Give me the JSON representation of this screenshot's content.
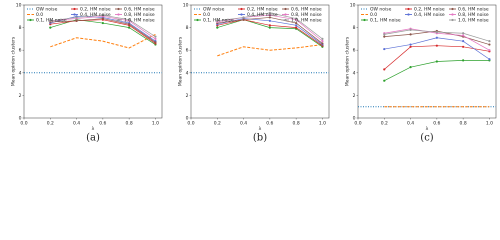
{
  "chart_data": [
    {
      "type": "line",
      "caption": "(a)",
      "xlabel": "λ",
      "ylabel": "Mean opinion clusters",
      "xlim": [
        0,
        1.05
      ],
      "ylim": [
        0,
        10
      ],
      "xticks": [
        {
          "value": 0,
          "label": "0.0"
        },
        {
          "value": 0.2,
          "label": "0.2"
        },
        {
          "value": 0.4,
          "label": "0.4"
        },
        {
          "value": 0.6,
          "label": "0.6"
        },
        {
          "value": 0.8,
          "label": "0.8"
        },
        {
          "value": 1,
          "label": "1.0"
        }
      ],
      "yticks": [
        0,
        2,
        4,
        6,
        8,
        10
      ],
      "legend": "upper center",
      "x": [
        0.2,
        0.4,
        0.6,
        0.8,
        1.0
      ],
      "series": [
        {
          "name": "OW noise",
          "color": "#1f77b4",
          "linestyle": "dotted",
          "marker": false,
          "x": [
            0,
            1.05
          ],
          "values": [
            4,
            4
          ]
        },
        {
          "name": "0.0",
          "color": "#ff7f0e",
          "linestyle": "dashed",
          "marker": false,
          "values": [
            6.3,
            7.1,
            6.8,
            6.2,
            7.4
          ]
        },
        {
          "name": "0.1, HM noise",
          "color": "#2ca02c",
          "linestyle": "solid",
          "marker": true,
          "values": [
            8.0,
            8.7,
            8.4,
            8.0,
            6.5
          ]
        },
        {
          "name": "0.2, HM noise",
          "color": "#d62728",
          "linestyle": "solid",
          "marker": true,
          "values": [
            8.3,
            8.6,
            8.7,
            8.2,
            6.6
          ]
        },
        {
          "name": "0.4, HM noise",
          "color": "#5a6fd6",
          "linestyle": "solid",
          "marker": true,
          "values": [
            8.4,
            9.0,
            8.9,
            8.4,
            6.8
          ]
        },
        {
          "name": "0.6, HM noise",
          "color": "#8c564b",
          "linestyle": "solid",
          "marker": true,
          "values": [
            8.5,
            8.6,
            8.8,
            8.3,
            6.7
          ]
        },
        {
          "name": "0.8, HM noise",
          "color": "#e377c2",
          "linestyle": "solid",
          "marker": true,
          "values": [
            8.6,
            8.8,
            9.0,
            8.6,
            7.0
          ]
        },
        {
          "name": "1.0, HM noise",
          "color": "#9a9a9a",
          "linestyle": "solid",
          "marker": true,
          "values": [
            8.6,
            8.9,
            9.1,
            8.7,
            7.2
          ]
        }
      ]
    },
    {
      "type": "line",
      "caption": "(b)",
      "xlabel": "λ",
      "ylabel": "Mean opinion clusters",
      "xlim": [
        0,
        1.05
      ],
      "ylim": [
        0,
        10
      ],
      "xticks": [
        {
          "value": 0,
          "label": "0.0"
        },
        {
          "value": 0.2,
          "label": "0.2"
        },
        {
          "value": 0.4,
          "label": "0.4"
        },
        {
          "value": 0.6,
          "label": "0.6"
        },
        {
          "value": 0.8,
          "label": "0.8"
        },
        {
          "value": 1,
          "label": "1.0"
        }
      ],
      "yticks": [
        0,
        2,
        4,
        6,
        8,
        10
      ],
      "legend": "upper center",
      "x": [
        0.2,
        0.4,
        0.6,
        0.8,
        1.0
      ],
      "series": [
        {
          "name": "OW noise",
          "color": "#1f77b4",
          "linestyle": "dotted",
          "marker": false,
          "x": [
            0,
            1.05
          ],
          "values": [
            4,
            4
          ]
        },
        {
          "name": "0.0",
          "color": "#ff7f0e",
          "linestyle": "dashed",
          "marker": false,
          "values": [
            5.5,
            6.3,
            6.0,
            6.2,
            6.5
          ]
        },
        {
          "name": "0.1, HM noise",
          "color": "#2ca02c",
          "linestyle": "solid",
          "marker": true,
          "values": [
            8.0,
            8.7,
            8.0,
            7.9,
            6.3
          ]
        },
        {
          "name": "0.2, HM noise",
          "color": "#d62728",
          "linestyle": "solid",
          "marker": true,
          "values": [
            8.2,
            8.7,
            8.2,
            8.0,
            6.4
          ]
        },
        {
          "name": "0.4, HM noise",
          "color": "#5a6fd6",
          "linestyle": "solid",
          "marker": true,
          "values": [
            8.3,
            8.8,
            8.6,
            8.2,
            6.5
          ]
        },
        {
          "name": "0.6, HM noise",
          "color": "#8c564b",
          "linestyle": "solid",
          "marker": true,
          "values": [
            8.4,
            8.7,
            8.9,
            8.4,
            6.6
          ]
        },
        {
          "name": "0.8, HM noise",
          "color": "#e377c2",
          "linestyle": "solid",
          "marker": true,
          "values": [
            8.5,
            8.9,
            9.1,
            8.7,
            6.8
          ]
        },
        {
          "name": "1.0, HM noise",
          "color": "#9a9a9a",
          "linestyle": "solid",
          "marker": true,
          "values": [
            8.6,
            8.9,
            9.3,
            8.8,
            7.0
          ]
        }
      ]
    },
    {
      "type": "line",
      "caption": "(c)",
      "xlabel": "λ",
      "ylabel": "Mean opinion clusters",
      "xlim": [
        0,
        1.05
      ],
      "ylim": [
        0,
        10
      ],
      "xticks": [
        {
          "value": 0,
          "label": "0.0"
        },
        {
          "value": 0.2,
          "label": "0.2"
        },
        {
          "value": 0.4,
          "label": "0.4"
        },
        {
          "value": 0.6,
          "label": "0.6"
        },
        {
          "value": 0.8,
          "label": "0.8"
        },
        {
          "value": 1,
          "label": "1.0"
        }
      ],
      "yticks": [
        0,
        2,
        4,
        6,
        8,
        10
      ],
      "legend": "upper center",
      "x": [
        0.2,
        0.4,
        0.6,
        0.8,
        1.0
      ],
      "series": [
        {
          "name": "OW noise",
          "color": "#1f77b4",
          "linestyle": "dotted",
          "marker": false,
          "x": [
            0,
            1.05
          ],
          "values": [
            1,
            1
          ]
        },
        {
          "name": "0.0",
          "color": "#ff7f0e",
          "linestyle": "dashed",
          "marker": false,
          "values": [
            1,
            1,
            1,
            1,
            1
          ]
        },
        {
          "name": "0.1, HM noise",
          "color": "#2ca02c",
          "linestyle": "solid",
          "marker": true,
          "values": [
            3.3,
            4.5,
            5.0,
            5.1,
            5.1
          ]
        },
        {
          "name": "0.2, HM noise",
          "color": "#d62728",
          "linestyle": "solid",
          "marker": true,
          "values": [
            4.3,
            6.3,
            6.4,
            6.3,
            5.9
          ]
        },
        {
          "name": "0.4, HM noise",
          "color": "#5a6fd6",
          "linestyle": "solid",
          "marker": true,
          "values": [
            6.1,
            6.5,
            7.1,
            6.8,
            5.2
          ]
        },
        {
          "name": "0.6, HM noise",
          "color": "#8c564b",
          "linestyle": "solid",
          "marker": true,
          "values": [
            7.2,
            7.4,
            7.7,
            7.2,
            6.5
          ]
        },
        {
          "name": "0.8, HM noise",
          "color": "#e377c2",
          "linestyle": "solid",
          "marker": true,
          "values": [
            7.5,
            7.9,
            7.5,
            7.3,
            6.0
          ]
        },
        {
          "name": "1.0, HM noise",
          "color": "#9a9a9a",
          "linestyle": "solid",
          "marker": true,
          "values": [
            7.4,
            7.8,
            7.6,
            7.5,
            6.8
          ]
        }
      ]
    }
  ]
}
